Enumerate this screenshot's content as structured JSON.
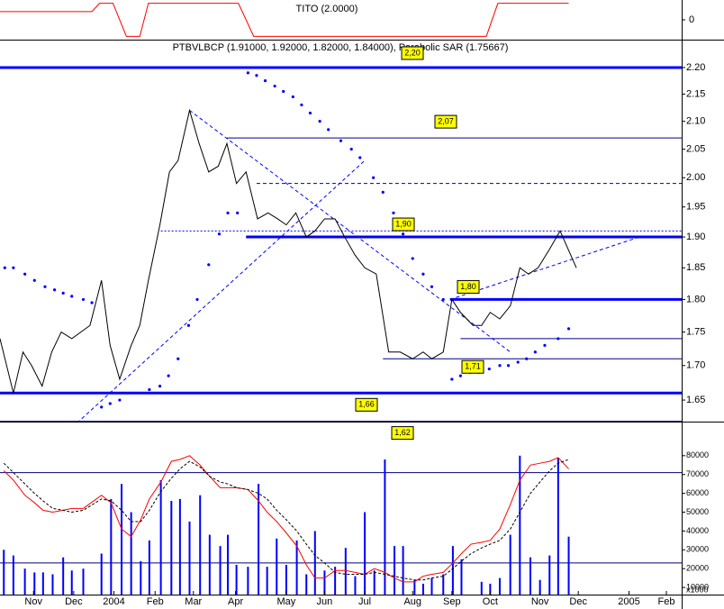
{
  "chart_data": [
    {
      "type": "line",
      "title": "TITO (2.0000)",
      "xlim": [
        -0.4,
        70.8
      ],
      "ylim": [
        -1.2,
        1.2
      ],
      "yticks": [
        0
      ],
      "series": [
        {
          "color": "#ff0000",
          "style": "line",
          "x": [
            -0.4,
            9.2,
            10.0,
            11.4,
            12.8,
            14.2,
            15.1,
            24.5,
            26.1,
            50.4,
            51.6,
            59.0
          ],
          "values": [
            0.5,
            0.5,
            1,
            1,
            -1,
            -1,
            1,
            1,
            -1,
            -1,
            1,
            1
          ]
        }
      ]
    },
    {
      "type": "line",
      "title": "PTBVLBCP (1.91000, 1.92000, 1.82000, 1.84000), Parabolic SAR (1.75667)",
      "log_scale": true,
      "xlim": [
        -0.4,
        70.8
      ],
      "ylim": [
        1.6195,
        2.252
      ],
      "yticks": [
        1.65,
        {
          "value": 1.7,
          "label": "1.70"
        },
        1.75,
        {
          "value": 1.8,
          "label": "1.80"
        },
        1.85,
        {
          "value": 1.9,
          "label": "1.90"
        },
        1.95,
        {
          "value": 2.0,
          "label": "2.00"
        },
        2.05,
        {
          "value": 2.1,
          "label": "2.10"
        },
        2.15,
        {
          "value": 2.2,
          "label": "2.20"
        }
      ],
      "series": [
        {
          "color": "#000000",
          "style": "line",
          "x": [
            -0.4,
            1.0,
            2.0,
            2.9,
            4.0,
            5.0,
            6.0,
            7.1,
            9.0,
            10.2,
            11.1,
            12.1,
            13.3,
            14.2,
            15.1,
            16.3,
            17.3,
            18.2,
            19.4,
            20.4,
            21.4,
            22.4,
            23.3,
            24.3,
            25.3,
            26.5,
            27.6,
            28.6,
            29.5,
            30.5,
            31.6,
            32.5,
            33.5,
            34.6,
            35.6,
            36.7,
            37.7,
            38.9,
            40.2,
            41.4,
            42.7,
            43.8,
            44.7,
            45.9,
            46.8,
            47.7,
            49.0,
            49.9,
            50.8,
            51.8,
            52.9,
            53.9,
            54.8,
            55.8,
            57.0,
            58.1,
            59.8
          ],
          "values": [
            1.74,
            1.66,
            1.72,
            1.7,
            1.67,
            1.72,
            1.75,
            1.74,
            1.76,
            1.83,
            1.73,
            1.68,
            1.73,
            1.76,
            1.83,
            1.92,
            2.01,
            2.03,
            2.12,
            2.06,
            2.01,
            2.02,
            2.06,
            1.99,
            2.01,
            1.93,
            1.94,
            1.93,
            1.92,
            1.94,
            1.9,
            1.91,
            1.93,
            1.93,
            1.9,
            1.87,
            1.85,
            1.84,
            1.72,
            1.72,
            1.71,
            1.72,
            1.71,
            1.72,
            1.8,
            1.78,
            1.76,
            1.76,
            1.78,
            1.77,
            1.79,
            1.85,
            1.84,
            1.85,
            1.88,
            1.91,
            1.85
          ]
        },
        {
          "color": "#0000ff",
          "style": "dots",
          "x": [
            0.1,
            1.0,
            2.2,
            3.2,
            4.3,
            5.3,
            6.2,
            7.1,
            8.3,
            9.2,
            10.2,
            11.1,
            12.1,
            15.2,
            16.3,
            17.2,
            18.2,
            19.3,
            20.2,
            21.4,
            22.5,
            23.4,
            24.4,
            25.5,
            26.4,
            27.3,
            28.3,
            29.2,
            30.2,
            31.1,
            32.0,
            33.0,
            33.9,
            35.2,
            36.3,
            37.2,
            38.6,
            39.6,
            40.7,
            41.7,
            42.7,
            43.8,
            44.7,
            45.9,
            46.8,
            47.7,
            48.7,
            49.6,
            50.7,
            51.8,
            52.7,
            53.7,
            54.6,
            55.5,
            56.5,
            57.9,
            59.0
          ],
          "values": [
            1.85,
            1.85,
            1.84,
            1.83,
            1.82,
            1.815,
            1.81,
            1.805,
            1.8,
            1.795,
            1.64,
            1.645,
            1.65,
            1.665,
            1.67,
            1.685,
            1.71,
            1.76,
            1.8,
            1.855,
            1.905,
            1.94,
            1.94,
            2.19,
            2.185,
            2.175,
            2.165,
            2.155,
            2.145,
            2.13,
            2.115,
            2.1,
            2.085,
            2.065,
            2.05,
            2.035,
            2.0,
            1.975,
            1.94,
            1.905,
            1.865,
            1.84,
            1.82,
            1.8,
            1.68,
            1.685,
            1.69,
            1.69,
            1.695,
            1.7,
            1.7,
            1.705,
            1.71,
            1.72,
            1.73,
            1.74,
            1.755
          ]
        }
      ],
      "levels": [
        {
          "value": 2.2,
          "label": "2,20",
          "style": "thick"
        },
        {
          "value": 2.07,
          "label": "2,07",
          "style": "thin",
          "from": 23.3
        },
        {
          "value": 1.99,
          "style": "dashed",
          "from": 26.4
        },
        {
          "value": 1.91,
          "style": "dotted",
          "from": 16.4
        },
        {
          "value": 1.9,
          "label": "1,90",
          "style": "thick",
          "from": 25.3
        },
        {
          "value": 1.8,
          "label": "1,80",
          "style": "thick",
          "from": 46.6
        },
        {
          "value": 1.74,
          "style": "thin",
          "from": 47.7
        },
        {
          "value": 1.71,
          "label": "1,71",
          "style": "thin",
          "from": 39.6
        },
        {
          "value": 1.66,
          "label": "1,66",
          "style": "thick"
        },
        {
          "value": 1.62,
          "label": "1,62",
          "style": "thin"
        }
      ],
      "trendlines": [
        {
          "x": [
            5.7,
            37.7
          ],
          "values": [
            1.594,
            2.03
          ]
        },
        {
          "x": [
            19.4,
            52.9
          ],
          "values": [
            2.12,
            1.72
          ]
        },
        {
          "x": [
            46.6,
            66.4
          ],
          "values": [
            1.8,
            1.9
          ]
        }
      ]
    },
    {
      "type": "bar",
      "unit_label": "x1000",
      "xlim": [
        -0.4,
        70.8
      ],
      "ylim": [
        6220,
        98100
      ],
      "yticks": [
        10000,
        20000,
        30000,
        40000,
        50000,
        60000,
        70000,
        80000
      ],
      "levels": [
        71000,
        23000
      ],
      "xticks": [
        {
          "value": 3.1,
          "label": "Nov"
        },
        {
          "value": 7.3,
          "label": "Dec"
        },
        {
          "value": 11.5,
          "label": "2004"
        },
        {
          "value": 15.8,
          "label": "Feb"
        },
        {
          "value": 19.8,
          "label": "Mar"
        },
        {
          "value": 24.2,
          "label": "Apr"
        },
        {
          "value": 29.5,
          "label": "May"
        },
        {
          "value": 33.5,
          "label": "Jun"
        },
        {
          "value": 37.7,
          "label": "Jul"
        },
        {
          "value": 42.7,
          "label": "Aug"
        },
        {
          "value": 46.8,
          "label": "Sep"
        },
        {
          "value": 50.8,
          "label": "Oct"
        },
        {
          "value": 56.0,
          "label": "Nov"
        },
        {
          "value": 60.0,
          "label": "Dec"
        },
        {
          "value": 65.3,
          "label": "2005"
        },
        {
          "value": 69.2,
          "label": "Feb"
        }
      ],
      "x": [
        0,
        1.0,
        2.2,
        3.2,
        4.1,
        5.1,
        6.2,
        7.1,
        8.3,
        10.2,
        11.2,
        12.3,
        13.3,
        14.3,
        15.2,
        16.4,
        17.5,
        18.4,
        19.4,
        20.5,
        21.5,
        22.6,
        23.4,
        24.3,
        25.5,
        26.6,
        27.5,
        28.5,
        29.5,
        30.6,
        31.6,
        32.5,
        33.5,
        34.6,
        35.7,
        36.7,
        37.7,
        38.7,
        39.8,
        40.8,
        41.7,
        42.9,
        43.8,
        44.7,
        45.9,
        46.9,
        47.8,
        48.8,
        49.9,
        50.8,
        51.8,
        52.9,
        53.9,
        55.0,
        56.0,
        57.0,
        57.9,
        59.0
      ],
      "series": [
        {
          "color": "#0000ff",
          "style": "bar",
          "values": [
            30000,
            27000,
            20000,
            18000,
            18000,
            17000,
            26000,
            19000,
            20000,
            28000,
            57000,
            65000,
            50000,
            24000,
            35000,
            67000,
            56000,
            57000,
            45000,
            59000,
            38000,
            32000,
            38000,
            22000,
            21000,
            65000,
            21000,
            36000,
            22000,
            35000,
            17000,
            40000,
            19000,
            21000,
            31000,
            16000,
            50000,
            19000,
            78000,
            32000,
            32000,
            14000,
            12000,
            15000,
            17000,
            32000,
            25000,
            6000,
            13000,
            12000,
            15000,
            38000,
            80000,
            26000,
            14000,
            27000,
            79000,
            37000
          ]
        },
        {
          "color": "#ff0000",
          "style": "line",
          "values": [
            72000,
            67000,
            59000,
            55000,
            51000,
            50000,
            51000,
            52000,
            52000,
            59000,
            55000,
            41000,
            37000,
            46000,
            57000,
            66000,
            77000,
            78000,
            80000,
            75000,
            69000,
            63000,
            63000,
            63000,
            62000,
            56000,
            50000,
            45000,
            39000,
            32000,
            22000,
            15000,
            15000,
            19000,
            19000,
            18000,
            17000,
            20000,
            18000,
            15000,
            13000,
            13000,
            16000,
            17000,
            18000,
            23000,
            28000,
            33000,
            34000,
            35000,
            41000,
            54000,
            67000,
            75000,
            76000,
            77000,
            79000,
            73000
          ]
        },
        {
          "color": "#000000",
          "style": "dashed",
          "values": [
            76000,
            71000,
            65000,
            60000,
            56000,
            52000,
            51000,
            50000,
            51000,
            57000,
            56000,
            51000,
            45000,
            45000,
            51000,
            61000,
            68000,
            73000,
            77000,
            74000,
            69000,
            66000,
            65000,
            63000,
            62000,
            60000,
            57000,
            51000,
            46000,
            40000,
            33000,
            27000,
            23000,
            18000,
            17000,
            17000,
            17000,
            18000,
            17000,
            16000,
            15000,
            14000,
            14000,
            15000,
            16000,
            20000,
            24000,
            28000,
            31000,
            33000,
            35000,
            41000,
            50000,
            60000,
            66000,
            72000,
            76000,
            78000
          ]
        }
      ]
    }
  ]
}
